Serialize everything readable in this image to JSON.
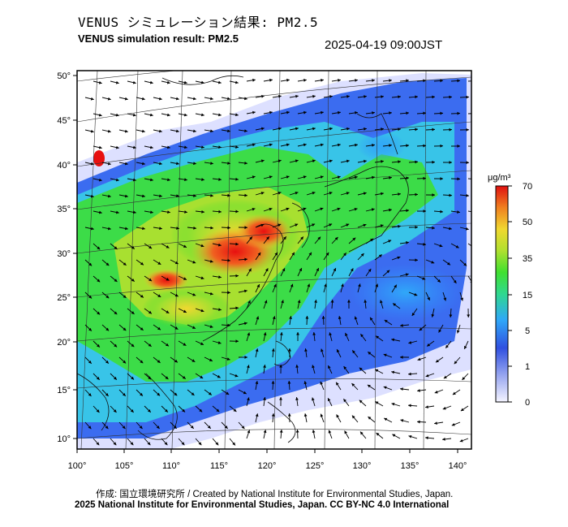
{
  "header": {
    "title_jp": "VENUS シミュレーション結果: PM2.5",
    "title_en": "VENUS simulation result: PM2.5",
    "datetime": "2025-04-19 09:00JST"
  },
  "map": {
    "lon_ticks": [
      "100°",
      "105°",
      "110°",
      "115°",
      "120°",
      "125°",
      "130°",
      "135°",
      "140°"
    ],
    "lat_ticks": [
      "50°",
      "45°",
      "40°",
      "35°",
      "30°",
      "25°",
      "20°",
      "15°",
      "10°"
    ],
    "lon_range": [
      100,
      141
    ],
    "lat_range": [
      9,
      51
    ]
  },
  "colorbar": {
    "unit": "μg/m³",
    "tick_labels": [
      "70",
      "50",
      "35",
      "15",
      "5",
      "1",
      "0"
    ],
    "colors": [
      "#e0e0ff",
      "#3040e0",
      "#3090ff",
      "#30c0f0",
      "#30d870",
      "#30e030",
      "#a0e030",
      "#f0e030",
      "#f0a020",
      "#f04020",
      "#e01010"
    ]
  },
  "footer": {
    "credit_line1": "作成: 国立環境研究所 / Created by National Institute for Environmental Studies, Japan.",
    "credit_line2": "2025 National Institute for Environmental Studies, Japan. CC BY-NC 4.0 International"
  }
}
